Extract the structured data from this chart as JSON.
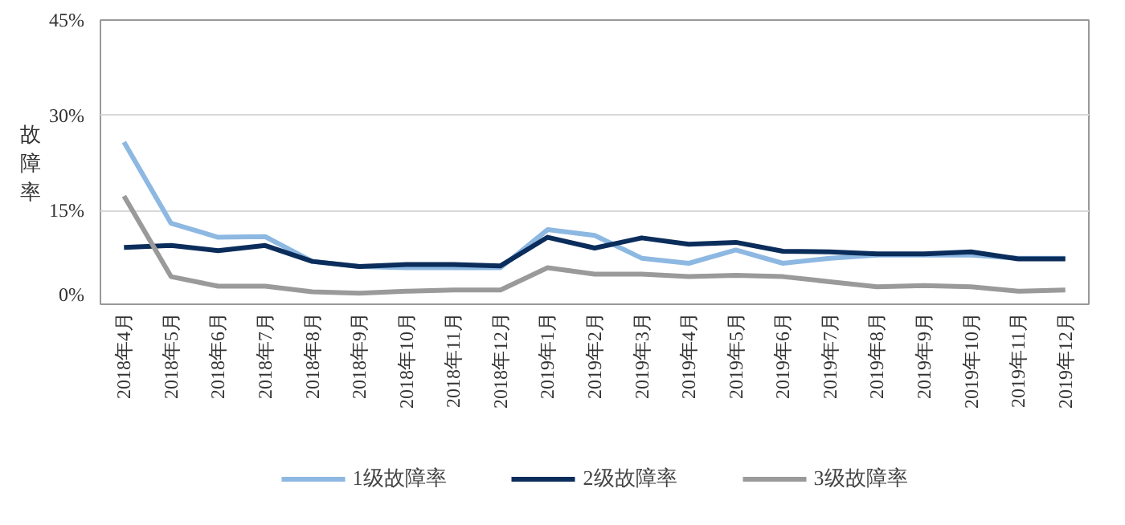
{
  "chart_data": {
    "type": "line",
    "ylabel": "故障率",
    "categories": [
      "2018年4月",
      "2018年5月",
      "2018年6月",
      "2018年7月",
      "2018年8月",
      "2018年9月",
      "2018年10月",
      "2018年11月",
      "2018年12月",
      "2019年1月",
      "2019年2月",
      "2019年3月",
      "2019年4月",
      "2019年5月",
      "2019年6月",
      "2019年7月",
      "2019年8月",
      "2019年9月",
      "2019年10月",
      "2019年11月",
      "2019年12月"
    ],
    "series": [
      {
        "name": "1级故障率",
        "color": "#8db8e2",
        "values": [
          25.8,
          13,
          10.8,
          10.9,
          7,
          6.2,
          6,
          6,
          6,
          12,
          11.1,
          7.5,
          6.7,
          8.8,
          6.7,
          7.5,
          8,
          8,
          8,
          7.5,
          7.5
        ]
      },
      {
        "name": "2级故障率",
        "color": "#0b2d5b",
        "values": [
          9.2,
          9.5,
          8.7,
          9.5,
          7,
          6.2,
          6.5,
          6.5,
          6.3,
          10.8,
          9.1,
          10.7,
          9.7,
          10,
          8.6,
          8.5,
          8.2,
          8.2,
          8.5,
          7.4,
          7.4
        ]
      },
      {
        "name": "3级故障率",
        "color": "#9a9a9a",
        "values": [
          17.3,
          4.6,
          3.1,
          3.1,
          2.2,
          2,
          2.3,
          2.5,
          2.5,
          6,
          5,
          5,
          4.6,
          4.8,
          4.6,
          3.8,
          3,
          3.2,
          3,
          2.3,
          2.5
        ]
      }
    ],
    "ylim": [
      0,
      45
    ],
    "yticks": [
      {
        "value": 0,
        "label": "0%"
      },
      {
        "value": 15,
        "label": "15%"
      },
      {
        "value": 30,
        "label": "30%"
      },
      {
        "value": 45,
        "label": "45%"
      }
    ],
    "grid": "y",
    "legend": "bottom",
    "marker": "none",
    "line_style": "solid"
  }
}
